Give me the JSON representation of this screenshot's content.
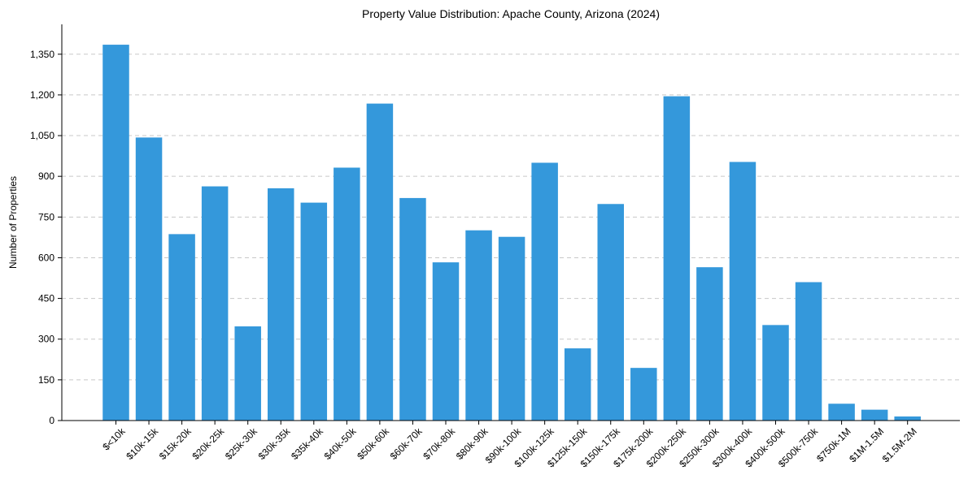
{
  "chart_data": {
    "type": "bar",
    "title": "Property Value Distribution: Apache County, Arizona (2024)",
    "xlabel": "",
    "ylabel": "Number of Properties",
    "ylim": [
      0,
      1460
    ],
    "yticks": [
      0,
      150,
      300,
      450,
      600,
      750,
      900,
      1050,
      1200,
      1350
    ],
    "ytick_labels": [
      "0",
      "150",
      "300",
      "450",
      "600",
      "750",
      "900",
      "1,050",
      "1,200",
      "1,350"
    ],
    "grid": "y-dashed",
    "bar_color": "#3498db",
    "categories": [
      "$<10k",
      "$10k-15k",
      "$15k-20k",
      "$20k-25k",
      "$25k-30k",
      "$30k-35k",
      "$35k-40k",
      "$40k-50k",
      "$50k-60k",
      "$60k-70k",
      "$70k-80k",
      "$80k-90k",
      "$90k-100k",
      "$100k-125k",
      "$125k-150k",
      "$150k-175k",
      "$175k-200k",
      "$200k-250k",
      "$250k-300k",
      "$300k-400k",
      "$400k-500k",
      "$500k-750k",
      "$750k-1M",
      "$1M-1.5M",
      "$1.5M-2M"
    ],
    "values": [
      1385,
      1043,
      687,
      863,
      347,
      856,
      803,
      932,
      1168,
      820,
      583,
      701,
      677,
      950,
      266,
      798,
      194,
      1195,
      565,
      953,
      352,
      510,
      62,
      40,
      15
    ]
  }
}
